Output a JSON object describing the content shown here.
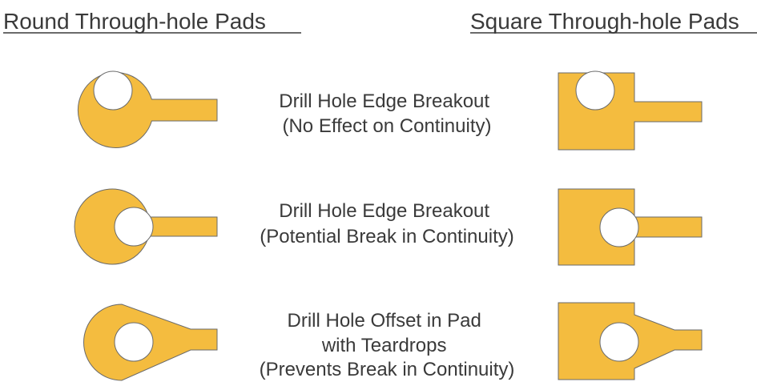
{
  "headings": {
    "round": "Round Through-hole Pads",
    "square": "Square Through-hole Pads"
  },
  "rows": [
    {
      "lines": [
        "Drill Hole Edge Breakout",
        "(No Effect on Continuity)"
      ]
    },
    {
      "lines": [
        "Drill Hole Edge Breakout",
        "(Potential Break in Continuity)"
      ]
    },
    {
      "lines": [
        "Drill Hole Offset in Pad",
        "with Teardrops",
        "(Prevents Break in Continuity)"
      ]
    }
  ],
  "colors": {
    "pad_fill": "#f4bc3f",
    "outline": "#6a6a6a",
    "text": "#3a3a3a"
  }
}
